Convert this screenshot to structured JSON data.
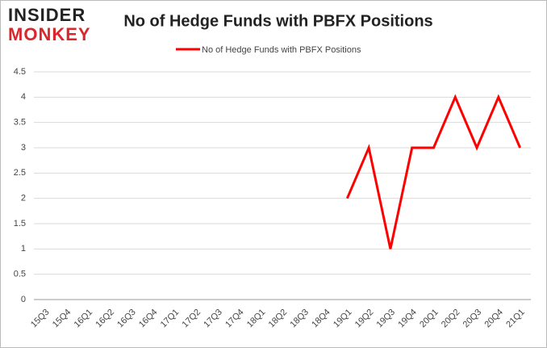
{
  "logo": [
    "INSIDER",
    "MONKEY"
  ],
  "chart_data": {
    "type": "line",
    "title": "No of Hedge Funds with PBFX Positions",
    "categories": [
      "15Q3",
      "15Q4",
      "16Q1",
      "16Q2",
      "16Q3",
      "16Q4",
      "17Q1",
      "17Q2",
      "17Q3",
      "17Q4",
      "18Q1",
      "18Q2",
      "18Q3",
      "18Q4",
      "19Q1",
      "19Q2",
      "19Q3",
      "19Q4",
      "20Q1",
      "20Q2",
      "20Q3",
      "20Q4",
      "21Q1"
    ],
    "series": [
      {
        "name": "No of Hedge Funds with PBFX Positions",
        "color": "#ff0000",
        "values": [
          null,
          null,
          null,
          null,
          null,
          null,
          null,
          null,
          null,
          null,
          null,
          null,
          null,
          null,
          2,
          3,
          1,
          3,
          3,
          4,
          3,
          4,
          3
        ]
      }
    ],
    "ylim": [
      0,
      4.5
    ],
    "yticks": [
      0,
      0.5,
      1,
      1.5,
      2,
      2.5,
      3,
      3.5,
      4,
      4.5
    ],
    "grid": true,
    "legend": "top"
  }
}
